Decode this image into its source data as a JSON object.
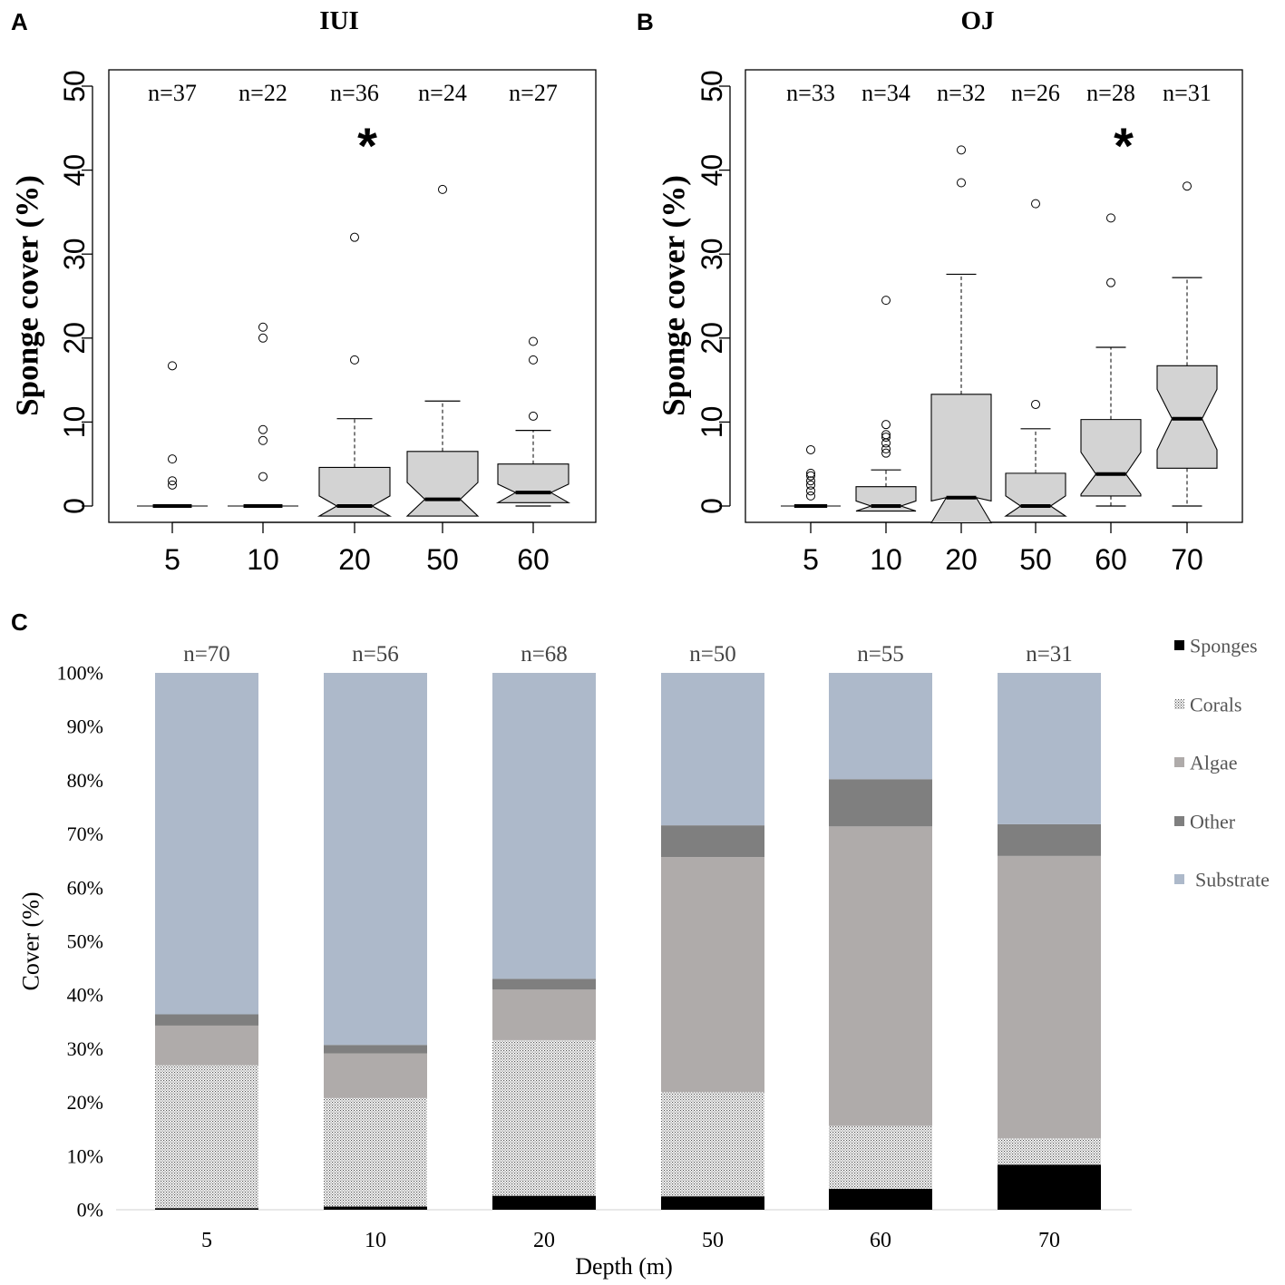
{
  "panels": {
    "a": {
      "letter": "A",
      "title": "IUI"
    },
    "b": {
      "letter": "B",
      "title": "OJ"
    },
    "c": {
      "letter": "C"
    }
  },
  "chart_data": [
    {
      "id": "A",
      "type": "boxplot",
      "title": "IUI",
      "ylabel": "Sponge cover (%)",
      "xlabel": "",
      "ylim": [
        0,
        50
      ],
      "yticks": [
        "0",
        "10",
        "20",
        "30",
        "40",
        "50"
      ],
      "significant_marker": "*",
      "significant_index": 2,
      "groups": [
        {
          "label": "5",
          "n": "n=37",
          "q1": 0,
          "median": 0,
          "q3": 0,
          "notch_low": 0,
          "notch_high": 0,
          "whisker_low": 0,
          "whisker_high": 0,
          "outliers": [
            2.5,
            3.0,
            5.6,
            16.7
          ]
        },
        {
          "label": "10",
          "n": "n=22",
          "q1": 0,
          "median": 0,
          "q3": 0,
          "notch_low": 0,
          "notch_high": 0,
          "whisker_low": 0,
          "whisker_high": 0,
          "outliers": [
            3.5,
            7.8,
            9.1,
            20.0,
            21.3
          ]
        },
        {
          "label": "20",
          "n": "n=36",
          "q1": 0,
          "median": 0,
          "q3": 4.6,
          "notch_low": -1.2,
          "notch_high": 1.2,
          "whisker_low": 0,
          "whisker_high": 10.4,
          "outliers": [
            17.4,
            32.0
          ]
        },
        {
          "label": "50",
          "n": "n=24",
          "q1": 0,
          "median": 0.8,
          "q3": 6.5,
          "notch_low": -1.2,
          "notch_high": 2.8,
          "whisker_low": 0,
          "whisker_high": 12.5,
          "outliers": [
            37.7
          ]
        },
        {
          "label": "60",
          "n": "n=27",
          "q1": 0.8,
          "median": 1.6,
          "q3": 5.0,
          "notch_low": 0.4,
          "notch_high": 2.6,
          "whisker_low": 0,
          "whisker_high": 9.0,
          "outliers": [
            10.7,
            17.4,
            19.6
          ]
        }
      ]
    },
    {
      "id": "B",
      "type": "boxplot",
      "title": "OJ",
      "ylabel": "Sponge cover (%)",
      "xlabel": "",
      "ylim": [
        0,
        50
      ],
      "yticks": [
        "0",
        "10",
        "20",
        "30",
        "40",
        "50"
      ],
      "significant_marker": "*",
      "significant_index": 4,
      "groups": [
        {
          "label": "5",
          "n": "n=33",
          "q1": 0,
          "median": 0,
          "q3": 0,
          "notch_low": 0,
          "notch_high": 0,
          "whisker_low": 0,
          "whisker_high": 0,
          "outliers": [
            1.2,
            1.8,
            2.5,
            3.0,
            3.6,
            3.9,
            6.7
          ]
        },
        {
          "label": "10",
          "n": "n=34",
          "q1": 0,
          "median": 0,
          "q3": 2.3,
          "notch_low": -0.6,
          "notch_high": 0.6,
          "whisker_low": 0,
          "whisker_high": 4.3,
          "outliers": [
            6.3,
            6.8,
            7.5,
            8.2,
            8.5,
            9.7,
            24.5
          ]
        },
        {
          "label": "20",
          "n": "n=32",
          "q1": 0,
          "median": 1.0,
          "q3": 13.3,
          "notch_low": -2.0,
          "notch_high": 0.6,
          "whisker_low": 0,
          "whisker_high": 27.6,
          "outliers": [
            38.5,
            42.4
          ]
        },
        {
          "label": "50",
          "n": "n=26",
          "q1": 0,
          "median": 0,
          "q3": 3.9,
          "notch_low": -1.2,
          "notch_high": 1.2,
          "whisker_low": 0,
          "whisker_high": 9.2,
          "outliers": [
            12.1,
            36.0
          ]
        },
        {
          "label": "60",
          "n": "n=28",
          "q1": 1.2,
          "median": 3.8,
          "q3": 10.3,
          "notch_low": 1.4,
          "notch_high": 6.4,
          "whisker_low": 0,
          "whisker_high": 18.9,
          "outliers": [
            26.6,
            34.3
          ]
        },
        {
          "label": "70",
          "n": "n=31",
          "q1": 4.5,
          "median": 10.4,
          "q3": 16.7,
          "notch_low": 6.7,
          "notch_high": 13.9,
          "whisker_low": 0,
          "whisker_high": 27.2,
          "outliers": [
            38.1
          ]
        }
      ]
    },
    {
      "id": "C",
      "type": "stacked_bar",
      "title": "",
      "xlabel": "Depth (m)",
      "ylabel": "Cover (%)",
      "ylim": [
        0,
        100
      ],
      "yticks": [
        "0%",
        "10%",
        "20%",
        "30%",
        "40%",
        "50%",
        "60%",
        "70%",
        "80%",
        "90%",
        "100%"
      ],
      "categories": [
        "5",
        "10",
        "20",
        "50",
        "60",
        "70"
      ],
      "n_labels": [
        "n=70",
        "n=56",
        "n=68",
        "n=50",
        "n=55",
        "n=31"
      ],
      "legend_position": "right",
      "series": [
        {
          "name": "Sponges",
          "color": "#000000",
          "pattern": "solid",
          "values": [
            0.3,
            0.6,
            2.6,
            2.5,
            3.9,
            8.4
          ]
        },
        {
          "name": "Corals",
          "color": "#d8d8d8",
          "pattern": "dotted",
          "values": [
            26.6,
            20.2,
            29.0,
            19.4,
            11.7,
            4.9
          ]
        },
        {
          "name": "Algae",
          "color": "#afabaa",
          "pattern": "solid",
          "values": [
            7.4,
            8.3,
            9.4,
            43.8,
            55.8,
            52.6
          ]
        },
        {
          "name": "Other",
          "color": "#7f7f7f",
          "pattern": "solid",
          "values": [
            2.1,
            1.6,
            2.0,
            5.9,
            8.8,
            5.9
          ]
        },
        {
          "name": "Substrate",
          "color": "#adb9ca",
          "pattern": "solid",
          "values": [
            63.6,
            69.3,
            57.0,
            28.4,
            19.8,
            28.2
          ]
        }
      ]
    }
  ]
}
